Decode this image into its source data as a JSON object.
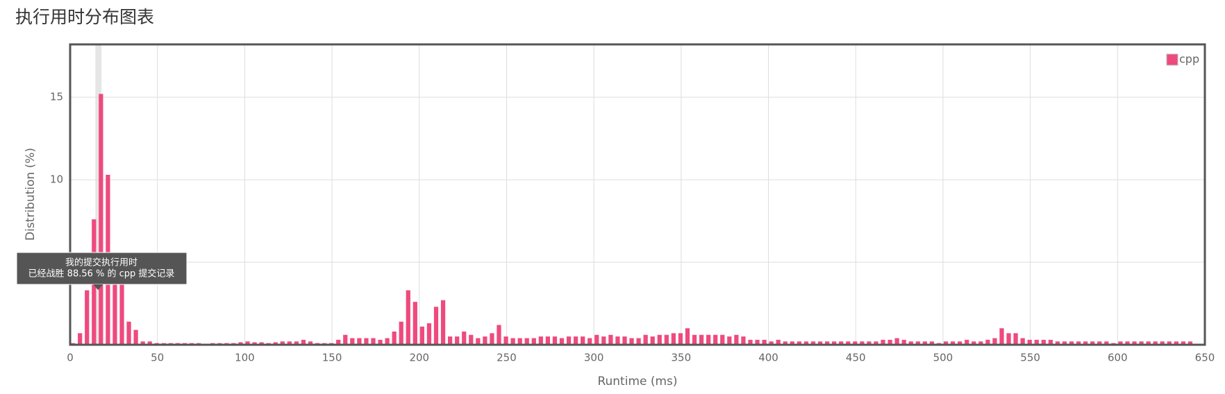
{
  "chart_data": {
    "type": "bar",
    "title": "执行用时分布图表",
    "x_label": "Runtime (ms)",
    "y_label": "Distribution (%)",
    "xlim": [
      0,
      650
    ],
    "xticks": [
      0,
      50,
      100,
      150,
      200,
      250,
      300,
      350,
      400,
      450,
      500,
      550,
      600,
      650
    ],
    "ylim": [
      0,
      18.2
    ],
    "yticks": [
      5,
      10,
      15
    ],
    "grid": true,
    "legend": "top-right",
    "highlight_x": 16,
    "tooltip": [
      "我的提交执行用时",
      "已经战胜 88.56 % 的 cpp 提交记录"
    ],
    "x": [
      0,
      4,
      8,
      12,
      16,
      20,
      24,
      28,
      32,
      36,
      40,
      44,
      48,
      52,
      56,
      60,
      64,
      68,
      72,
      76,
      80,
      84,
      88,
      92,
      96,
      100,
      104,
      108,
      112,
      116,
      120,
      124,
      128,
      132,
      136,
      140,
      144,
      148,
      152,
      156,
      160,
      164,
      168,
      172,
      176,
      180,
      184,
      188,
      192,
      196,
      200,
      204,
      208,
      212,
      216,
      220,
      224,
      228,
      232,
      236,
      240,
      244,
      248,
      252,
      256,
      260,
      264,
      268,
      272,
      276,
      280,
      284,
      288,
      292,
      296,
      300,
      304,
      308,
      312,
      316,
      320,
      324,
      328,
      332,
      336,
      340,
      344,
      348,
      352,
      356,
      360,
      364,
      368,
      372,
      376,
      380,
      384,
      388,
      392,
      396,
      400,
      404,
      408,
      412,
      416,
      420,
      424,
      428,
      432,
      436,
      440,
      444,
      448,
      452,
      456,
      460,
      464,
      468,
      472,
      476,
      480,
      484,
      488,
      492,
      496,
      500,
      504,
      508,
      512,
      516,
      520,
      524,
      528,
      532,
      536,
      540,
      544,
      548,
      552,
      556,
      560,
      564,
      568,
      572,
      576,
      580,
      584,
      588,
      592,
      596,
      600,
      604,
      608,
      612,
      616,
      620,
      624,
      628,
      632,
      636,
      640
    ],
    "series": [
      {
        "name": "cpp",
        "color": "#ee4a7e",
        "values": [
          0.1,
          0.7,
          3.3,
          7.6,
          15.2,
          10.3,
          5.5,
          4.1,
          1.4,
          0.9,
          0.2,
          0.2,
          0.1,
          0.1,
          0.1,
          0.1,
          0.1,
          0.1,
          0.1,
          0,
          0.1,
          0.1,
          0.1,
          0.1,
          0.15,
          0.2,
          0.15,
          0.15,
          0.1,
          0.15,
          0.2,
          0.2,
          0.2,
          0.3,
          0.2,
          0.1,
          0.1,
          0.1,
          0.3,
          0.6,
          0.4,
          0.4,
          0.4,
          0.4,
          0.3,
          0.4,
          0.8,
          1.4,
          3.3,
          2.6,
          1.1,
          1.3,
          2.3,
          2.7,
          0.5,
          0.5,
          0.8,
          0.6,
          0.4,
          0.5,
          0.7,
          1.2,
          0.5,
          0.4,
          0.4,
          0.4,
          0.4,
          0.5,
          0.5,
          0.5,
          0.4,
          0.5,
          0.5,
          0.5,
          0.4,
          0.6,
          0.5,
          0.6,
          0.5,
          0.5,
          0.4,
          0.4,
          0.6,
          0.5,
          0.6,
          0.6,
          0.7,
          0.7,
          1.0,
          0.6,
          0.6,
          0.6,
          0.6,
          0.6,
          0.5,
          0.6,
          0.5,
          0.3,
          0.3,
          0.3,
          0.2,
          0.3,
          0.2,
          0.2,
          0.2,
          0.2,
          0.2,
          0.2,
          0.2,
          0.2,
          0.2,
          0.2,
          0.2,
          0.2,
          0.2,
          0.2,
          0.3,
          0.3,
          0.4,
          0.3,
          0.2,
          0.2,
          0.2,
          0.2,
          0.1,
          0.2,
          0.2,
          0.2,
          0.3,
          0.2,
          0.2,
          0.3,
          0.4,
          1.0,
          0.7,
          0.7,
          0.4,
          0.3,
          0.3,
          0.3,
          0.3,
          0.2,
          0.2,
          0.2,
          0.2,
          0.2,
          0.2,
          0.2,
          0.2,
          0.1,
          0.2,
          0.2,
          0.2,
          0.2,
          0.2,
          0.2,
          0.2,
          0.2,
          0.2,
          0.2,
          0.2
        ]
      }
    ]
  }
}
